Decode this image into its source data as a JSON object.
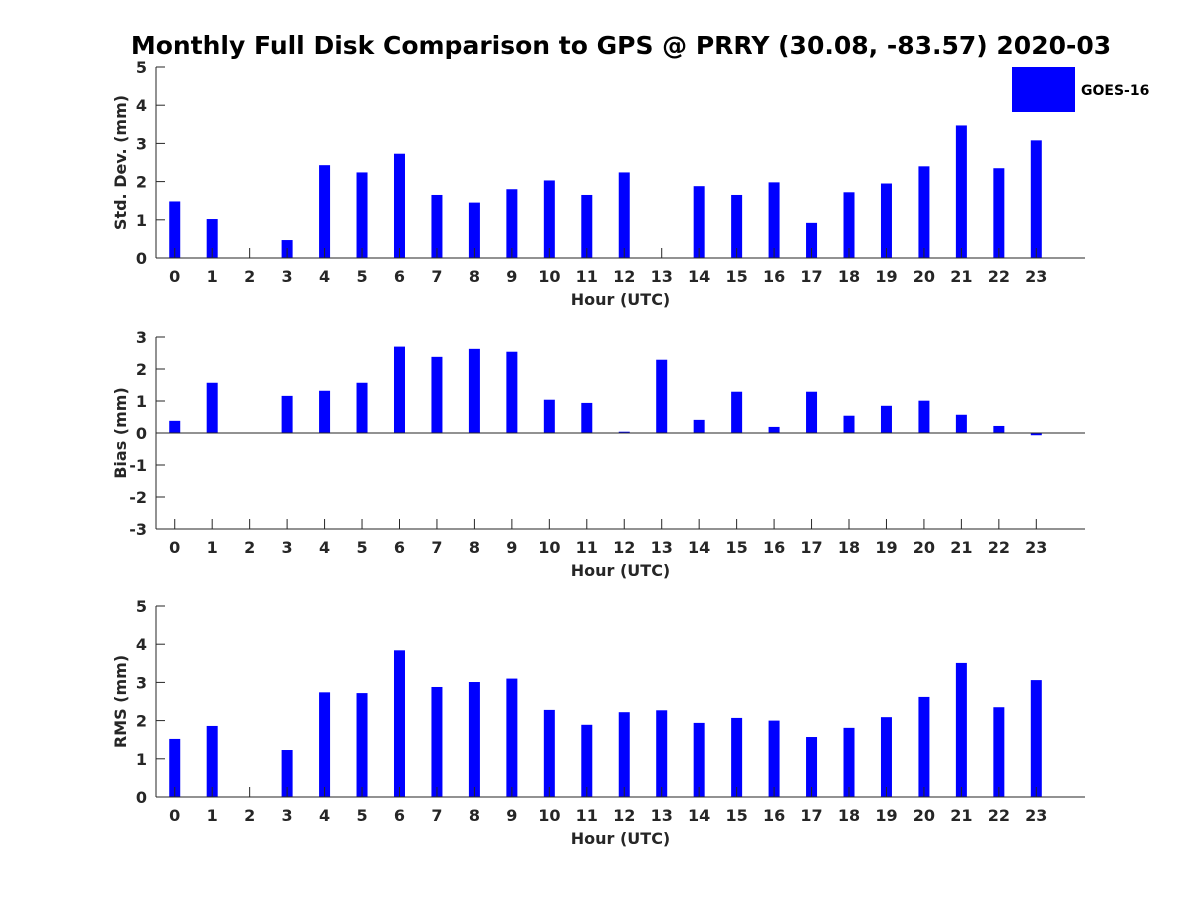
{
  "chart_data": {
    "type": "bar",
    "title": "Monthly Full Disk Comparison to GPS @ PRRY (30.08, -83.57) 2020-03",
    "bar_color": "#0000ff",
    "axis_color": "#262626",
    "legend": {
      "label": "GOES-16",
      "placement": "top-right"
    },
    "categories": [
      "0",
      "1",
      "2",
      "3",
      "4",
      "5",
      "6",
      "7",
      "8",
      "9",
      "10",
      "11",
      "12",
      "13",
      "14",
      "15",
      "16",
      "17",
      "18",
      "19",
      "20",
      "21",
      "22",
      "23"
    ],
    "panels": [
      {
        "id": "std",
        "xlabel": "Hour (UTC)",
        "ylabel": "Std. Dev. (mm)",
        "ylim": [
          0,
          5
        ],
        "yticks": [
          "0",
          "1",
          "2",
          "3",
          "4",
          "5"
        ],
        "series": [
          {
            "name": "GOES-16",
            "values": [
              1.48,
              1.02,
              0,
              0.47,
              2.43,
              2.24,
              2.73,
              1.65,
              1.45,
              1.8,
              2.03,
              1.65,
              2.24,
              0,
              1.88,
              1.65,
              1.98,
              0.92,
              1.72,
              1.95,
              2.4,
              3.47,
              2.35,
              3.08
            ]
          }
        ]
      },
      {
        "id": "bias",
        "xlabel": "Hour (UTC)",
        "ylabel": "Bias (mm)",
        "ylim": [
          -3,
          3
        ],
        "yticks": [
          "-3",
          "-2",
          "-1",
          "0",
          "1",
          "2",
          "3"
        ],
        "series": [
          {
            "name": "GOES-16",
            "values": [
              0.38,
              1.57,
              0,
              1.16,
              1.32,
              1.57,
              2.7,
              2.38,
              2.63,
              2.54,
              1.04,
              0.94,
              0.04,
              2.29,
              0.41,
              1.29,
              0.19,
              1.29,
              0.54,
              0.85,
              1.01,
              0.57,
              0.22,
              -0.07
            ]
          }
        ]
      },
      {
        "id": "rms",
        "xlabel": "Hour (UTC)",
        "ylabel": "RMS (mm)",
        "ylim": [
          0,
          5
        ],
        "yticks": [
          "0",
          "1",
          "2",
          "3",
          "4",
          "5"
        ],
        "series": [
          {
            "name": "GOES-16",
            "values": [
              1.52,
              1.86,
              0,
              1.23,
              2.74,
              2.72,
              3.84,
              2.88,
              3.01,
              3.1,
              2.28,
              1.89,
              2.22,
              2.27,
              1.94,
              2.07,
              2.0,
              1.57,
              1.81,
              2.09,
              2.62,
              3.51,
              2.35,
              3.06
            ]
          }
        ]
      }
    ]
  }
}
